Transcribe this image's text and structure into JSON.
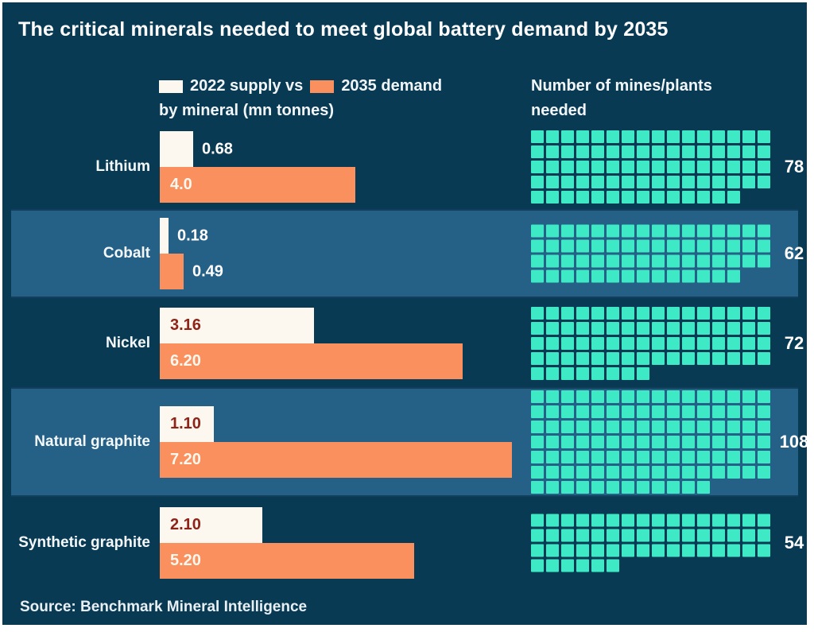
{
  "title": "The critical minerals needed to meet global battery demand by 2035",
  "legend": {
    "supply_text": "2022 supply vs",
    "demand_text": "2035 demand",
    "unit_text": "by mineral (mn tonnes)"
  },
  "right_header": {
    "line1": "Number of mines/plants",
    "line2": "needed"
  },
  "source": "Source: Benchmark Mineral Intelligence",
  "colors": {
    "background": "#083a54",
    "band": "#256086",
    "supply_bar": "#fdf8ef",
    "demand_bar": "#f9905d",
    "waffle_square": "#3ee9c5",
    "value_on_white": "#8e2318",
    "value_on_orange": "#fdf8ef",
    "text": "#ffffff"
  },
  "chart_data": {
    "type": "bar",
    "title": "The critical minerals needed to meet global battery demand by 2035",
    "subtitle": "2022 supply vs 2035 demand by mineral (mn tonnes)",
    "categories": [
      "Lithium",
      "Cobalt",
      "Nickel",
      "Natural graphite",
      "Synthetic graphite"
    ],
    "series": [
      {
        "name": "2022 supply",
        "values": [
          0.68,
          0.18,
          3.16,
          1.1,
          2.1
        ],
        "labels": [
          "0.68",
          "0.18",
          "3.16",
          "1.10",
          "2.10"
        ],
        "color": "#fdf8ef"
      },
      {
        "name": "2035 demand",
        "values": [
          4.0,
          0.49,
          6.2,
          7.2,
          5.2
        ],
        "labels": [
          "4.0",
          "0.49",
          "6.20",
          "7.20",
          "5.20"
        ],
        "color": "#f9905d"
      }
    ],
    "waffle": {
      "name": "Number of mines/plants needed",
      "values": [
        78,
        62,
        72,
        108,
        54
      ],
      "columns": 16,
      "square_color": "#3ee9c5"
    },
    "xlim": [
      0,
      7.2
    ],
    "grid": false,
    "legend_position": "top",
    "source": "Source: Benchmark Mineral Intelligence"
  }
}
